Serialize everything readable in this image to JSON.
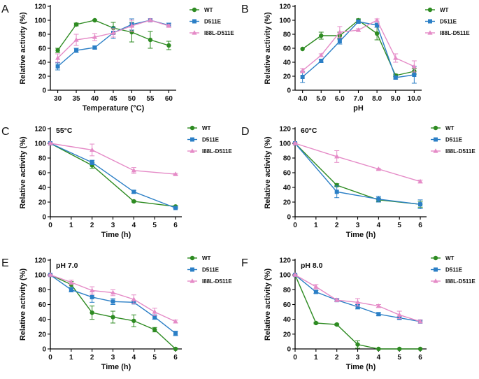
{
  "colors": {
    "WT": "#2e8b22",
    "D511E": "#2b7fc6",
    "I88L-D511E": "#e58bc7"
  },
  "chart_data": [
    {
      "id": "A",
      "type": "line",
      "panel_label": "A",
      "xlabel": "Temperature (°C)",
      "ylabel": "Relative activity (%)",
      "annotation": "",
      "x": [
        30,
        35,
        40,
        45,
        50,
        55,
        60
      ],
      "x_ticks": [
        30,
        35,
        40,
        45,
        50,
        55,
        60
      ],
      "xlim": [
        28,
        62
      ],
      "ylim": [
        0,
        120
      ],
      "y_ticks": [
        0,
        20,
        40,
        60,
        80,
        100,
        120
      ],
      "series": [
        {
          "name": "WT",
          "marker": "circle",
          "values": [
            57,
            94,
            100,
            89,
            83,
            72,
            64
          ],
          "errors": [
            3,
            2,
            1,
            8,
            14,
            12,
            6
          ]
        },
        {
          "name": "D511E",
          "marker": "square",
          "values": [
            34,
            57,
            61,
            82,
            94,
            100,
            93
          ],
          "errors": [
            5,
            3,
            2,
            8,
            8,
            2,
            3
          ]
        },
        {
          "name": "I88L-D511E",
          "marker": "triangle",
          "values": [
            46,
            72,
            76,
            82,
            92,
            100,
            92
          ],
          "errors": [
            6,
            8,
            5,
            6,
            8,
            2,
            2
          ]
        }
      ]
    },
    {
      "id": "B",
      "type": "line",
      "panel_label": "B",
      "xlabel": "pH",
      "ylabel": "Relative activity (%)",
      "annotation": "",
      "x": [
        4.0,
        5.0,
        6.0,
        7.0,
        8.0,
        9.0,
        10.0
      ],
      "x_ticks": [
        "4.0",
        "5.0",
        "6.0",
        "7.0",
        "8.0",
        "9.0",
        "10.0"
      ],
      "xlim": [
        3.6,
        10.4
      ],
      "ylim": [
        0,
        120
      ],
      "y_ticks": [
        0,
        20,
        40,
        60,
        80,
        100,
        120
      ],
      "series": [
        {
          "name": "WT",
          "marker": "circle",
          "values": [
            59,
            78,
            78,
            100,
            81,
            21,
            27
          ],
          "errors": [
            0,
            5,
            5,
            2,
            9,
            2,
            4
          ]
        },
        {
          "name": "D511E",
          "marker": "square",
          "values": [
            19,
            42,
            70,
            98,
            93,
            18,
            22
          ],
          "errors": [
            8,
            2,
            4,
            2,
            3,
            2,
            12
          ]
        },
        {
          "name": "I88L-D511E",
          "marker": "triangle",
          "values": [
            28,
            50,
            83,
            86,
            100,
            46,
            34
          ],
          "errors": [
            3,
            2,
            8,
            2,
            2,
            6,
            8
          ]
        }
      ]
    },
    {
      "id": "C",
      "type": "line",
      "panel_label": "C",
      "xlabel": "Time (h)",
      "ylabel": "Relative activity (%)",
      "annotation": "55°C",
      "x": [
        0,
        2,
        4,
        6
      ],
      "x_ticks": [
        0,
        1,
        2,
        3,
        4,
        5,
        6
      ],
      "xlim": [
        0,
        6.3
      ],
      "ylim": [
        0,
        120
      ],
      "y_ticks": [
        0,
        20,
        40,
        60,
        80,
        100,
        120
      ],
      "series": [
        {
          "name": "WT",
          "marker": "circle",
          "values": [
            100,
            70,
            21,
            14
          ],
          "errors": [
            1,
            4,
            1,
            1
          ]
        },
        {
          "name": "D511E",
          "marker": "square",
          "values": [
            100,
            74,
            34,
            12
          ],
          "errors": [
            1,
            3,
            2,
            1
          ]
        },
        {
          "name": "I88L-D511E",
          "marker": "triangle",
          "values": [
            100,
            91,
            63,
            58
          ],
          "errors": [
            1,
            8,
            4,
            1
          ]
        }
      ]
    },
    {
      "id": "D",
      "type": "line",
      "panel_label": "D",
      "xlabel": "Time (h)",
      "ylabel": "Relative activity (%)",
      "annotation": "60°C",
      "x": [
        0,
        2,
        4,
        6
      ],
      "x_ticks": [
        0,
        1,
        2,
        3,
        4,
        5,
        6
      ],
      "xlim": [
        0,
        6.3
      ],
      "ylim": [
        0,
        120
      ],
      "y_ticks": [
        0,
        20,
        40,
        60,
        80,
        100,
        120
      ],
      "series": [
        {
          "name": "WT",
          "marker": "circle",
          "values": [
            100,
            43,
            23,
            17
          ],
          "errors": [
            1,
            2,
            2,
            4
          ]
        },
        {
          "name": "D511E",
          "marker": "square",
          "values": [
            100,
            34,
            24,
            17
          ],
          "errors": [
            1,
            8,
            4,
            6
          ]
        },
        {
          "name": "I88L-D511E",
          "marker": "triangle",
          "values": [
            100,
            82,
            65,
            48
          ],
          "errors": [
            1,
            8,
            1,
            2
          ]
        }
      ]
    },
    {
      "id": "E",
      "type": "line",
      "panel_label": "E",
      "xlabel": "Time (h)",
      "ylabel": "Relative activity (%)",
      "annotation": "pH 7.0",
      "x": [
        0,
        1,
        2,
        3,
        4,
        5,
        6
      ],
      "x_ticks": [
        0,
        1,
        2,
        3,
        4,
        5,
        6
      ],
      "xlim": [
        0,
        6.3
      ],
      "ylim": [
        0,
        120
      ],
      "y_ticks": [
        0,
        20,
        40,
        60,
        80,
        100,
        120
      ],
      "series": [
        {
          "name": "WT",
          "marker": "circle",
          "values": [
            100,
            87,
            49,
            43,
            38,
            26,
            0
          ],
          "errors": [
            1,
            4,
            9,
            8,
            8,
            3,
            1
          ]
        },
        {
          "name": "D511E",
          "marker": "square",
          "values": [
            100,
            80,
            70,
            64,
            63,
            43,
            21
          ],
          "errors": [
            1,
            3,
            7,
            4,
            2,
            3,
            3
          ]
        },
        {
          "name": "I88L-D511E",
          "marker": "triangle",
          "values": [
            100,
            90,
            79,
            76,
            67,
            50,
            37
          ],
          "errors": [
            1,
            3,
            5,
            4,
            6,
            5,
            2
          ]
        }
      ]
    },
    {
      "id": "F",
      "type": "line",
      "panel_label": "F",
      "xlabel": "Time (h)",
      "ylabel": "Relative activity (%)",
      "annotation": "pH 8.0",
      "x": [
        0,
        1,
        2,
        3,
        4,
        5,
        6
      ],
      "x_ticks": [
        0,
        1,
        2,
        3,
        4,
        5,
        6
      ],
      "xlim": [
        0,
        6.3
      ],
      "ylim": [
        0,
        120
      ],
      "y_ticks": [
        0,
        20,
        40,
        60,
        80,
        100,
        120
      ],
      "series": [
        {
          "name": "WT",
          "marker": "circle",
          "values": [
            100,
            35,
            33,
            6,
            0,
            0,
            0
          ],
          "errors": [
            1,
            1,
            1,
            5,
            0,
            0,
            0
          ]
        },
        {
          "name": "D511E",
          "marker": "square",
          "values": [
            100,
            77,
            66,
            57,
            47,
            42,
            37
          ],
          "errors": [
            1,
            2,
            2,
            3,
            2,
            2,
            2
          ]
        },
        {
          "name": "I88L-D511E",
          "marker": "triangle",
          "values": [
            100,
            84,
            66,
            63,
            58,
            46,
            37
          ],
          "errors": [
            1,
            3,
            2,
            5,
            2,
            5,
            2
          ]
        }
      ]
    }
  ]
}
